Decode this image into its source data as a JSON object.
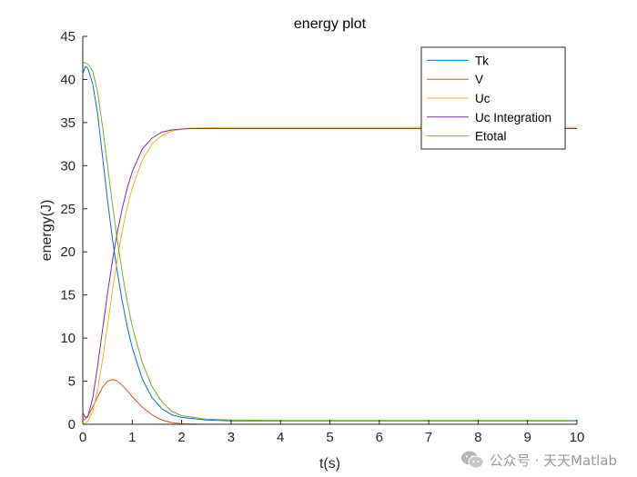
{
  "chart_data": {
    "type": "line",
    "title": "energy plot",
    "xlabel": "t(s)",
    "ylabel": "energy(J)",
    "xlim": [
      0,
      10
    ],
    "ylim": [
      0,
      45
    ],
    "xticks": [
      0,
      1,
      2,
      3,
      4,
      5,
      6,
      7,
      8,
      9,
      10
    ],
    "yticks": [
      0,
      5,
      10,
      15,
      20,
      25,
      30,
      35,
      40,
      45
    ],
    "grid": false,
    "legend_position": "top-right",
    "series": [
      {
        "name": "Tk",
        "color": "#0072BD",
        "x": [
          0,
          0.05,
          0.1,
          0.2,
          0.3,
          0.4,
          0.5,
          0.6,
          0.7,
          0.8,
          0.9,
          1.0,
          1.2,
          1.4,
          1.6,
          1.8,
          2.0,
          2.5,
          3.0,
          4.0,
          6.0,
          8.0,
          10.0
        ],
        "y": [
          40.7,
          41.5,
          41.3,
          39.5,
          36.0,
          31.0,
          26.0,
          21.5,
          17.6,
          14.2,
          11.3,
          8.9,
          5.3,
          3.1,
          1.8,
          1.1,
          0.8,
          0.5,
          0.4,
          0.4,
          0.4,
          0.4,
          0.4
        ]
      },
      {
        "name": "V",
        "color": "#D95319",
        "x": [
          0,
          0.05,
          0.1,
          0.2,
          0.3,
          0.4,
          0.5,
          0.6,
          0.7,
          0.8,
          0.9,
          1.0,
          1.2,
          1.4,
          1.6,
          1.8,
          2.0,
          2.5,
          3.0,
          5.0,
          10.0
        ],
        "y": [
          0.5,
          0.6,
          0.9,
          2.0,
          3.2,
          4.3,
          5.0,
          5.2,
          5.0,
          4.5,
          3.9,
          3.2,
          2.0,
          1.1,
          0.5,
          0.2,
          0.05,
          0,
          0,
          0,
          0
        ]
      },
      {
        "name": "Uc",
        "color": "#EDB120",
        "x": [
          0,
          0.1,
          0.2,
          0.3,
          0.4,
          0.5,
          0.6,
          0.7,
          0.8,
          0.9,
          1.0,
          1.2,
          1.4,
          1.6,
          1.8,
          2.0,
          2.2,
          2.5,
          3.0,
          5.0,
          10.0
        ],
        "y": [
          0,
          0.3,
          1.5,
          4.0,
          7.5,
          11.5,
          15.5,
          19.2,
          22.5,
          25.2,
          27.4,
          30.6,
          32.5,
          33.5,
          34.0,
          34.25,
          34.35,
          34.4,
          34.45,
          34.45,
          34.45
        ]
      },
      {
        "name": "Uc Integration",
        "color": "#7E2F8E",
        "x": [
          0,
          0.05,
          0.1,
          0.2,
          0.3,
          0.4,
          0.5,
          0.6,
          0.7,
          0.8,
          0.9,
          1.0,
          1.2,
          1.4,
          1.6,
          1.8,
          2.0,
          2.2,
          2.5,
          3.0,
          5.0,
          10.0
        ],
        "y": [
          1.3,
          0.8,
          0.9,
          3.0,
          6.8,
          11.0,
          15.2,
          19.0,
          22.3,
          25.1,
          27.4,
          29.3,
          31.9,
          33.2,
          33.9,
          34.15,
          34.25,
          34.3,
          34.3,
          34.3,
          34.3,
          34.3
        ]
      },
      {
        "name": "Etotal",
        "color": "#77AC30",
        "x": [
          0,
          0.05,
          0.1,
          0.2,
          0.3,
          0.4,
          0.5,
          0.6,
          0.7,
          0.8,
          0.9,
          1.0,
          1.2,
          1.4,
          1.6,
          1.8,
          2.0,
          2.5,
          3.0,
          4.0,
          6.0,
          8.0,
          10.0
        ],
        "y": [
          42.0,
          41.9,
          41.8,
          41.0,
          38.5,
          34.5,
          30.0,
          25.5,
          21.3,
          17.5,
          14.2,
          11.4,
          7.2,
          4.4,
          2.6,
          1.5,
          1.0,
          0.6,
          0.5,
          0.45,
          0.45,
          0.45,
          0.45
        ]
      }
    ]
  },
  "watermark": {
    "icon": "wechat-icon",
    "text": "公众号 · 天天Matlab"
  }
}
